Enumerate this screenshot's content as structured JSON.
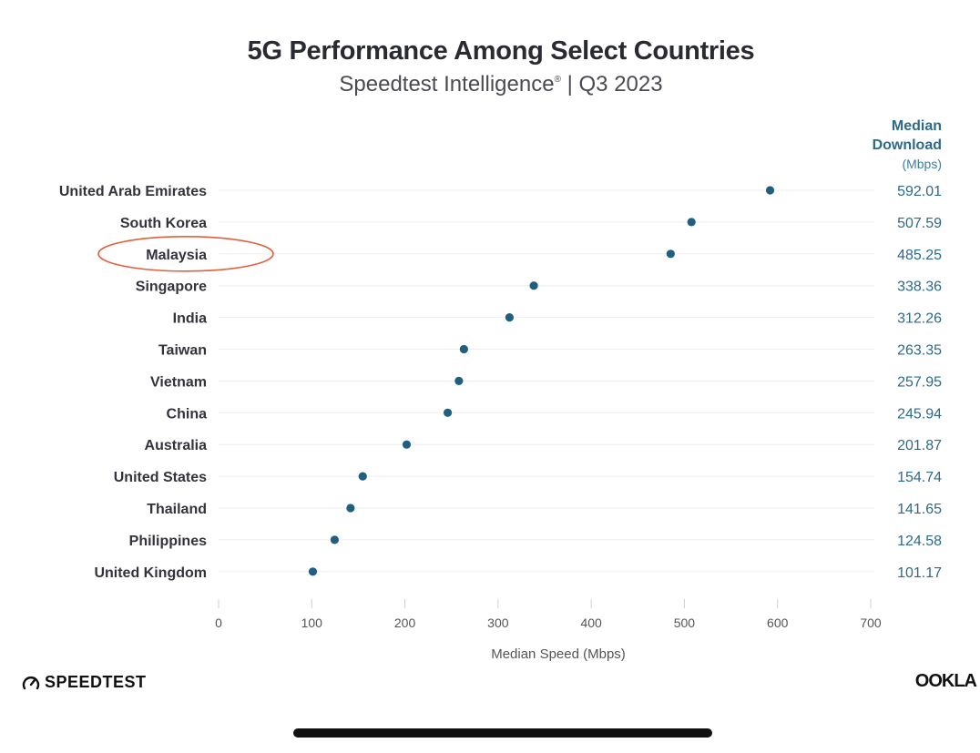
{
  "chart_data": {
    "type": "scatter",
    "title": "5G Performance Among Select Countries",
    "subtitle": "Speedtest Intelligence",
    "subtitle_mark": "®",
    "subtitle_suffix": "| Q3 2023",
    "value_column_header": [
      "Median",
      "Download"
    ],
    "value_column_unit": "(Mbps)",
    "xlabel": "Median Speed (Mbps)",
    "xlim": [
      0,
      700
    ],
    "xticks": [
      0,
      100,
      200,
      300,
      400,
      500,
      600,
      700
    ],
    "grid": true,
    "categories": [
      "United Arab Emirates",
      "South Korea",
      "Malaysia",
      "Singapore",
      "India",
      "Taiwan",
      "Vietnam",
      "China",
      "Australia",
      "United States",
      "Thailand",
      "Philippines",
      "United Kingdom"
    ],
    "values": [
      592.01,
      507.59,
      485.25,
      338.36,
      312.26,
      263.35,
      257.95,
      245.94,
      201.87,
      154.74,
      141.65,
      124.58,
      101.17
    ],
    "value_labels": [
      "592.01",
      "507.59",
      "485.25",
      "338.36",
      "312.26",
      "263.35",
      "257.95",
      "245.94",
      "201.87",
      "154.74",
      "141.65",
      "124.58",
      "101.17"
    ],
    "highlighted_category": "Malaysia",
    "colors": {
      "dot": "#1f5f80",
      "value_text": "#2d6a89",
      "highlight_ring": "#e0603e",
      "grid": "#eeeeee"
    }
  },
  "branding": {
    "left": "SPEEDTEST",
    "right": "OOKLA"
  }
}
